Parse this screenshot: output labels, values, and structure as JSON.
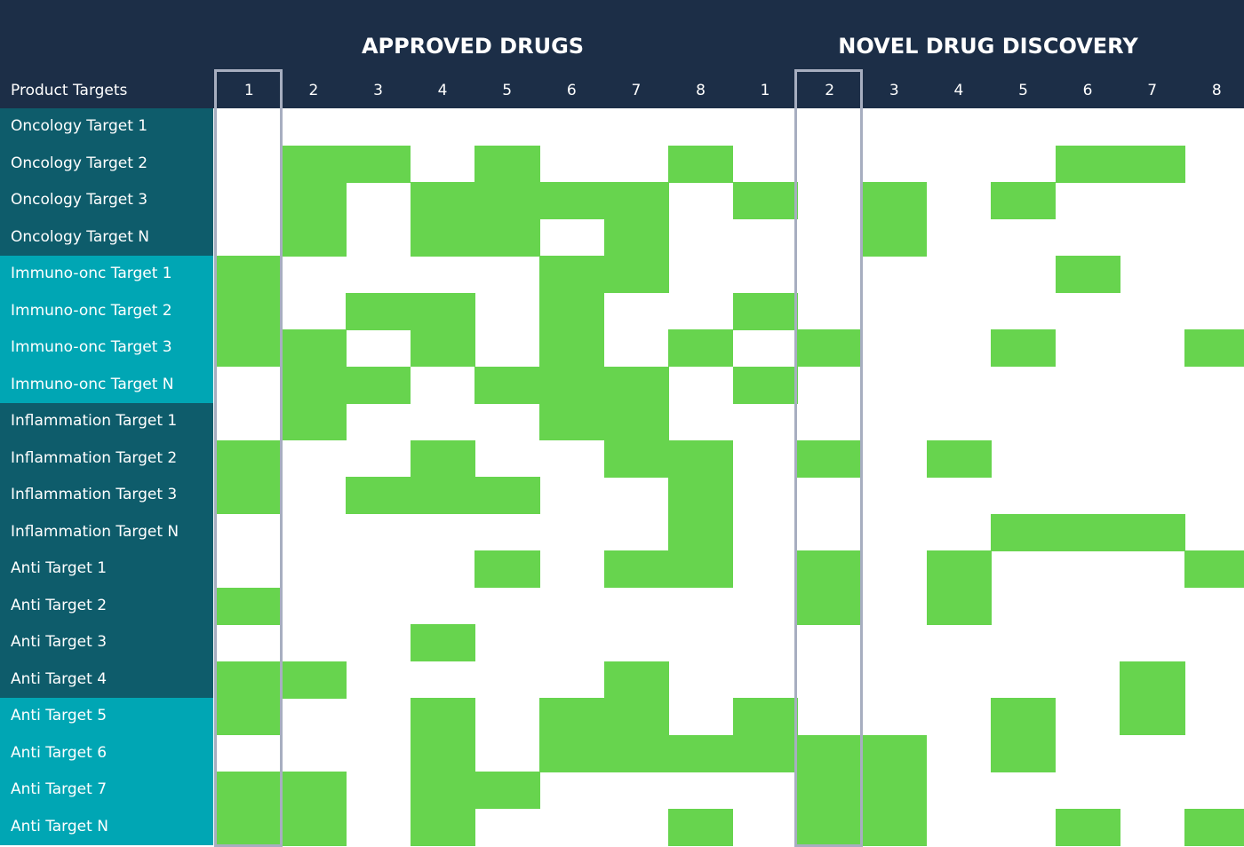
{
  "chart_data": {
    "type": "heatmap",
    "title": "",
    "corner_label": "Product Targets",
    "groups": [
      {
        "label": "APPROVED DRUGS",
        "columns": [
          "1",
          "2",
          "3",
          "4",
          "5",
          "6",
          "7",
          "8"
        ]
      },
      {
        "label": "NOVEL DRUG DISCOVERY",
        "columns": [
          "1",
          "2",
          "3",
          "4",
          "5",
          "6",
          "7",
          "8"
        ]
      }
    ],
    "rows": [
      "Oncology Target 1",
      "Oncology Target 2",
      "Oncology Target 3",
      "Oncology Target N",
      "Immuno-onc Target 1",
      "Immuno-onc Target 2",
      "Immuno-onc Target 3",
      "Immuno-onc Target N",
      "Inflammation Target 1",
      "Inflammation Target 2",
      "Inflammation Target 3",
      "Inflammation Target N",
      "Anti Target 1",
      "Anti Target 2",
      "Anti Target 3",
      "Anti Target 4",
      "Anti Target 5",
      "Anti Target 6",
      "Anti Target 7",
      "Anti Target N"
    ],
    "row_colors": [
      "#0e5c6b",
      "#0e5c6b",
      "#0e5c6b",
      "#0e5c6b",
      "#00a6b4",
      "#00a6b4",
      "#00a6b4",
      "#00a6b4",
      "#0e5c6b",
      "#0e5c6b",
      "#0e5c6b",
      "#0e5c6b",
      "#0e5c6b",
      "#0e5c6b",
      "#0e5c6b",
      "#0e5c6b",
      "#00a6b4",
      "#00a6b4",
      "#00a6b4",
      "#00a6b4"
    ],
    "values": [
      [
        0,
        0,
        0,
        0,
        0,
        0,
        0,
        0,
        0,
        0,
        0,
        0,
        0,
        0,
        0,
        0
      ],
      [
        0,
        1,
        1,
        0,
        1,
        0,
        0,
        1,
        0,
        0,
        0,
        0,
        0,
        1,
        1,
        0
      ],
      [
        0,
        1,
        0,
        1,
        1,
        1,
        1,
        0,
        1,
        0,
        1,
        0,
        1,
        0,
        0,
        0
      ],
      [
        0,
        1,
        0,
        1,
        1,
        0,
        1,
        0,
        0,
        0,
        1,
        0,
        0,
        0,
        0,
        0
      ],
      [
        1,
        0,
        0,
        0,
        0,
        1,
        1,
        0,
        0,
        0,
        0,
        0,
        0,
        1,
        0,
        0
      ],
      [
        1,
        0,
        1,
        1,
        0,
        1,
        0,
        0,
        1,
        0,
        0,
        0,
        0,
        0,
        0,
        0
      ],
      [
        1,
        1,
        0,
        1,
        0,
        1,
        0,
        1,
        0,
        1,
        0,
        0,
        1,
        0,
        0,
        1
      ],
      [
        0,
        1,
        1,
        0,
        1,
        1,
        1,
        0,
        1,
        0,
        0,
        0,
        0,
        0,
        0,
        0
      ],
      [
        0,
        1,
        0,
        0,
        0,
        1,
        1,
        0,
        0,
        0,
        0,
        0,
        0,
        0,
        0,
        0
      ],
      [
        1,
        0,
        0,
        1,
        0,
        0,
        1,
        1,
        0,
        1,
        0,
        1,
        0,
        0,
        0,
        0
      ],
      [
        1,
        0,
        1,
        1,
        1,
        0,
        0,
        1,
        0,
        0,
        0,
        0,
        0,
        0,
        0,
        0
      ],
      [
        0,
        0,
        0,
        0,
        0,
        0,
        0,
        1,
        0,
        0,
        0,
        0,
        1,
        1,
        1,
        0
      ],
      [
        0,
        0,
        0,
        0,
        1,
        0,
        1,
        1,
        0,
        1,
        0,
        1,
        0,
        0,
        0,
        1
      ],
      [
        1,
        0,
        0,
        0,
        0,
        0,
        0,
        0,
        0,
        1,
        0,
        1,
        0,
        0,
        0,
        0
      ],
      [
        0,
        0,
        0,
        1,
        0,
        0,
        0,
        0,
        0,
        0,
        0,
        0,
        0,
        0,
        0,
        0
      ],
      [
        1,
        1,
        0,
        0,
        0,
        0,
        1,
        0,
        0,
        0,
        0,
        0,
        0,
        0,
        1,
        0
      ],
      [
        1,
        0,
        0,
        1,
        0,
        1,
        1,
        0,
        1,
        0,
        0,
        0,
        1,
        0,
        1,
        0
      ],
      [
        0,
        0,
        0,
        1,
        0,
        1,
        1,
        1,
        1,
        1,
        1,
        0,
        1,
        0,
        0,
        0
      ],
      [
        1,
        1,
        0,
        1,
        1,
        0,
        0,
        0,
        0,
        1,
        1,
        0,
        0,
        0,
        0,
        0
      ],
      [
        1,
        1,
        0,
        1,
        0,
        0,
        0,
        1,
        0,
        1,
        1,
        0,
        0,
        1,
        0,
        1
      ]
    ],
    "highlighted_columns": [
      0,
      9
    ],
    "colors": {
      "header": "#1c2e47",
      "filled": "#67d44e",
      "empty": "#ffffff",
      "highlight_border": "#a7aec0"
    },
    "legend": "none"
  }
}
